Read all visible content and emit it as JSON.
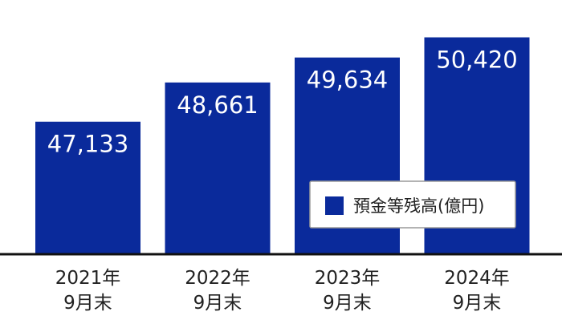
{
  "colors": {
    "bar": "#0a2a9b",
    "bar_label": "#ffffff",
    "axis": "#111111",
    "tick_label": "#222222",
    "legend_border": "#9a9a9a",
    "legend_text": "#222222",
    "background": "#ffffff"
  },
  "chart_data": {
    "type": "bar",
    "categories": [
      [
        "2021年",
        "9月末"
      ],
      [
        "2022年",
        "9月末"
      ],
      [
        "2023年",
        "9月末"
      ],
      [
        "2024年",
        "9月末"
      ]
    ],
    "values": [
      47133,
      48661,
      49634,
      50420
    ],
    "value_labels": [
      "47,133",
      "48,661",
      "49,634",
      "50,420"
    ],
    "series": [
      {
        "name": "預金等残高(億円)",
        "values": [
          47133,
          48661,
          49634,
          50420
        ]
      }
    ],
    "legend": {
      "label": "預金等残高(億円)",
      "position": "bottom-right"
    },
    "title": "",
    "xlabel": "",
    "ylabel": "",
    "ylim": [
      42000,
      51000
    ],
    "grid": false,
    "y_axis_visible": false
  }
}
